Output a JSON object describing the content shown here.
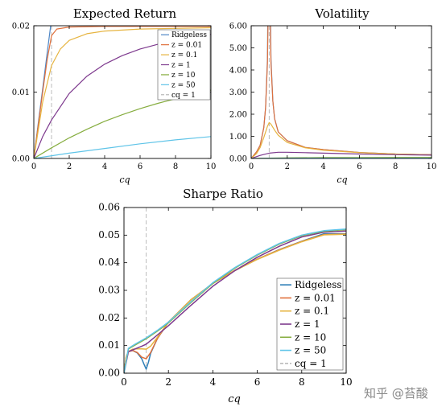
{
  "watermark": "知乎 @苔酸",
  "chart_data": [
    {
      "type": "line",
      "title": "Expected Return",
      "xlabel": "cq",
      "ylabel": "",
      "xlim": [
        0,
        10
      ],
      "ylim": [
        0,
        0.02
      ],
      "xticks": [
        "0",
        "2",
        "4",
        "6",
        "8",
        "10"
      ],
      "yticks": [
        "0.00",
        "0.01",
        "0.02"
      ],
      "grid": false,
      "legend": "top-right",
      "reference_line": {
        "x": 1,
        "label": "cq = 1",
        "style": "dashed",
        "color": "#bbbbbb"
      },
      "series": [
        {
          "name": "Ridgeless",
          "color": "#4e86c6",
          "x": [
            0,
            0.25,
            0.5,
            0.75,
            1,
            1.2,
            2,
            4,
            6,
            8,
            10
          ],
          "y": [
            0,
            0.0053,
            0.0105,
            0.0158,
            0.021,
            0.021,
            0.021,
            0.021,
            0.021,
            0.021,
            0.021
          ]
        },
        {
          "name": "z = 0.01",
          "color": "#e0703c",
          "x": [
            0,
            0.25,
            0.5,
            0.75,
            1,
            1.3,
            2,
            4,
            6,
            8,
            10
          ],
          "y": [
            0,
            0.005,
            0.01,
            0.0148,
            0.0185,
            0.0195,
            0.0198,
            0.0199,
            0.0199,
            0.0199,
            0.0199
          ]
        },
        {
          "name": "z = 0.1",
          "color": "#e6b440",
          "x": [
            0,
            0.5,
            1,
            1.5,
            2,
            3,
            4,
            6,
            8,
            10
          ],
          "y": [
            0,
            0.0085,
            0.014,
            0.0165,
            0.0178,
            0.0188,
            0.0192,
            0.0195,
            0.0196,
            0.0197
          ]
        },
        {
          "name": "z = 1",
          "color": "#7e3a8e",
          "x": [
            0,
            0.5,
            1,
            2,
            3,
            4,
            5,
            6,
            7,
            8,
            9,
            10
          ],
          "y": [
            0,
            0.0033,
            0.0058,
            0.0098,
            0.0124,
            0.0142,
            0.0155,
            0.0165,
            0.0172,
            0.0178,
            0.0183,
            0.0187
          ]
        },
        {
          "name": "z = 10",
          "color": "#86ad3f",
          "x": [
            0,
            1,
            2,
            3,
            4,
            5,
            6,
            7,
            8,
            9,
            10
          ],
          "y": [
            0,
            0.0016,
            0.0031,
            0.0044,
            0.0056,
            0.0066,
            0.0075,
            0.0083,
            0.009,
            0.0097,
            0.0103
          ]
        },
        {
          "name": "z = 50",
          "color": "#5fc4e8",
          "x": [
            0,
            2,
            4,
            6,
            8,
            10
          ],
          "y": [
            0,
            0.0008,
            0.0015,
            0.0022,
            0.0028,
            0.0033
          ]
        }
      ]
    },
    {
      "type": "line",
      "title": "Volatility",
      "xlabel": "cq",
      "ylabel": "",
      "xlim": [
        0,
        10
      ],
      "ylim": [
        0,
        6
      ],
      "xticks": [
        "0",
        "2",
        "4",
        "6",
        "8",
        "10"
      ],
      "yticks": [
        "0.00",
        "1.00",
        "2.00",
        "3.00",
        "4.00",
        "5.00",
        "6.00"
      ],
      "grid": false,
      "legend": "none",
      "reference_line": {
        "x": 1,
        "style": "dashed",
        "color": "#bbbbbb"
      },
      "series": [
        {
          "name": "Ridgeless",
          "color": "#4e86c6",
          "x": [
            0,
            0.3,
            0.5,
            0.7,
            0.8,
            0.9,
            0.95,
            1.05,
            1.1,
            1.2,
            1.3,
            1.5,
            2,
            3,
            4,
            6,
            8,
            10
          ],
          "y": [
            0,
            0.3,
            0.6,
            1.4,
            2.3,
            4.5,
            9,
            9,
            4.5,
            2.6,
            1.8,
            1.2,
            0.8,
            0.5,
            0.4,
            0.27,
            0.2,
            0.17
          ]
        },
        {
          "name": "z = 0.01",
          "color": "#e0703c",
          "x": [
            0,
            0.3,
            0.5,
            0.7,
            0.8,
            0.9,
            0.95,
            1.05,
            1.1,
            1.2,
            1.3,
            1.5,
            2,
            3,
            4,
            6,
            8,
            10
          ],
          "y": [
            0,
            0.3,
            0.6,
            1.4,
            2.3,
            4.3,
            7,
            7,
            4.3,
            2.6,
            1.8,
            1.2,
            0.8,
            0.5,
            0.4,
            0.27,
            0.2,
            0.17
          ]
        },
        {
          "name": "z = 0.1",
          "color": "#e6b440",
          "x": [
            0,
            0.3,
            0.5,
            0.7,
            0.9,
            1,
            1.1,
            1.3,
            1.5,
            2,
            3,
            4,
            6,
            8,
            10
          ],
          "y": [
            0,
            0.22,
            0.5,
            0.95,
            1.45,
            1.62,
            1.55,
            1.28,
            1.05,
            0.72,
            0.48,
            0.37,
            0.26,
            0.2,
            0.16
          ]
        },
        {
          "name": "z = 1",
          "color": "#7e3a8e",
          "x": [
            0,
            0.5,
            1,
            1.5,
            2,
            3,
            4,
            6,
            8,
            10
          ],
          "y": [
            0,
            0.14,
            0.24,
            0.28,
            0.28,
            0.26,
            0.24,
            0.2,
            0.17,
            0.15
          ]
        },
        {
          "name": "z = 10",
          "color": "#86ad3f",
          "x": [
            0,
            2,
            4,
            6,
            8,
            10
          ],
          "y": [
            0,
            0.03,
            0.04,
            0.045,
            0.046,
            0.047
          ]
        },
        {
          "name": "z = 50",
          "color": "#5fc4e8",
          "x": [
            0,
            2,
            4,
            6,
            8,
            10
          ],
          "y": [
            0,
            0.01,
            0.013,
            0.014,
            0.015,
            0.015
          ]
        }
      ]
    },
    {
      "type": "line",
      "title": "Sharpe Ratio",
      "xlabel": "cq",
      "ylabel": "",
      "xlim": [
        0,
        10
      ],
      "ylim": [
        0,
        0.06
      ],
      "xticks": [
        "0",
        "2",
        "4",
        "6",
        "8",
        "10"
      ],
      "yticks": [
        "0.00",
        "0.01",
        "0.02",
        "0.03",
        "0.04",
        "0.05",
        "0.06"
      ],
      "grid": false,
      "legend": "bottom-right",
      "reference_line": {
        "x": 1,
        "label": "cq = 1",
        "style": "dashed",
        "color": "#bbbbbb"
      },
      "series": [
        {
          "name": "Ridgeless",
          "color": "#2e7fb8",
          "x": [
            0,
            0.1,
            0.2,
            0.4,
            0.6,
            0.8,
            0.9,
            1,
            1.1,
            1.2,
            1.5,
            2,
            3,
            4,
            5,
            6,
            7,
            8,
            9,
            10
          ],
          "y": [
            0,
            0.006,
            0.0078,
            0.0082,
            0.0073,
            0.0052,
            0.0033,
            0.0015,
            0.004,
            0.0072,
            0.0125,
            0.0185,
            0.0265,
            0.0325,
            0.0372,
            0.0413,
            0.0448,
            0.0478,
            0.0505,
            0.0505
          ]
        },
        {
          "name": "z = 0.01",
          "color": "#e0703c",
          "x": [
            0,
            0.1,
            0.2,
            0.4,
            0.6,
            0.8,
            1,
            1.2,
            1.5,
            2,
            3,
            4,
            5,
            6,
            7,
            8,
            9,
            10
          ],
          "y": [
            0,
            0.006,
            0.0078,
            0.0082,
            0.0075,
            0.0058,
            0.0052,
            0.0075,
            0.0125,
            0.0185,
            0.0265,
            0.0325,
            0.0373,
            0.0413,
            0.0447,
            0.0477,
            0.0502,
            0.0504
          ]
        },
        {
          "name": "z = 0.1",
          "color": "#e6b440",
          "x": [
            0,
            0.1,
            0.2,
            0.4,
            0.6,
            0.8,
            1,
            1.2,
            1.5,
            2,
            3,
            4,
            5,
            6,
            7,
            8,
            9,
            10
          ],
          "y": [
            0,
            0.006,
            0.0079,
            0.0087,
            0.0088,
            0.0088,
            0.0087,
            0.0098,
            0.013,
            0.0185,
            0.0265,
            0.0325,
            0.0372,
            0.0412,
            0.0446,
            0.0476,
            0.0501,
            0.0503
          ]
        },
        {
          "name": "z = 1",
          "color": "#7e3a8e",
          "x": [
            0,
            0.2,
            0.5,
            0.8,
            1,
            1.5,
            2,
            3,
            4,
            5,
            6,
            7,
            8,
            9,
            10
          ],
          "y": [
            0,
            0.0078,
            0.0088,
            0.0098,
            0.0105,
            0.0138,
            0.0172,
            0.0245,
            0.0315,
            0.0372,
            0.042,
            0.046,
            0.0493,
            0.0511,
            0.0515
          ]
        },
        {
          "name": "z = 10",
          "color": "#86ad3f",
          "x": [
            0,
            0.2,
            0.5,
            1,
            1.5,
            2,
            3,
            4,
            5,
            6,
            7,
            8,
            9,
            10
          ],
          "y": [
            0,
            0.0088,
            0.0102,
            0.0125,
            0.0152,
            0.0182,
            0.0255,
            0.0325,
            0.0381,
            0.0428,
            0.0468,
            0.0498,
            0.0514,
            0.052
          ]
        },
        {
          "name": "z = 50",
          "color": "#5fc4e8",
          "x": [
            0,
            0.2,
            0.5,
            1,
            1.5,
            2,
            3,
            4,
            5,
            6,
            7,
            8,
            9,
            10
          ],
          "y": [
            0,
            0.009,
            0.0105,
            0.0128,
            0.0155,
            0.0185,
            0.0258,
            0.0328,
            0.0383,
            0.043,
            0.047,
            0.05,
            0.0516,
            0.0522
          ]
        }
      ],
      "legend_labels": [
        "Ridgeless",
        "z = 0.01",
        "z = 0.1",
        "z = 1",
        "z = 10",
        "z = 50",
        "cq = 1"
      ]
    }
  ]
}
